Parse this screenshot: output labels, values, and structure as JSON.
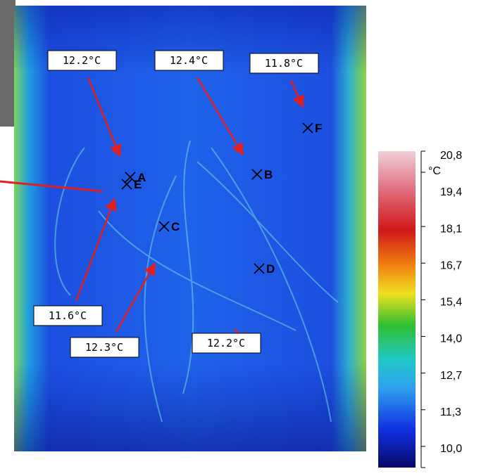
{
  "annotations": [
    {
      "temperature": "12.2°C",
      "point": "A"
    },
    {
      "temperature": "12.4°C",
      "point": "B"
    },
    {
      "temperature": "11.8°C",
      "point": "F"
    },
    {
      "temperature": "11.6°C",
      "point": "E"
    },
    {
      "temperature": "12.3°C",
      "point": "C"
    },
    {
      "temperature": "12.2°C",
      "point": "D"
    }
  ],
  "colorbar": {
    "unit": "°C",
    "labels": [
      "20,8",
      "19,4",
      "18,1",
      "16,7",
      "15,4",
      "14,0",
      "12,7",
      "11,3",
      "10,0"
    ]
  }
}
